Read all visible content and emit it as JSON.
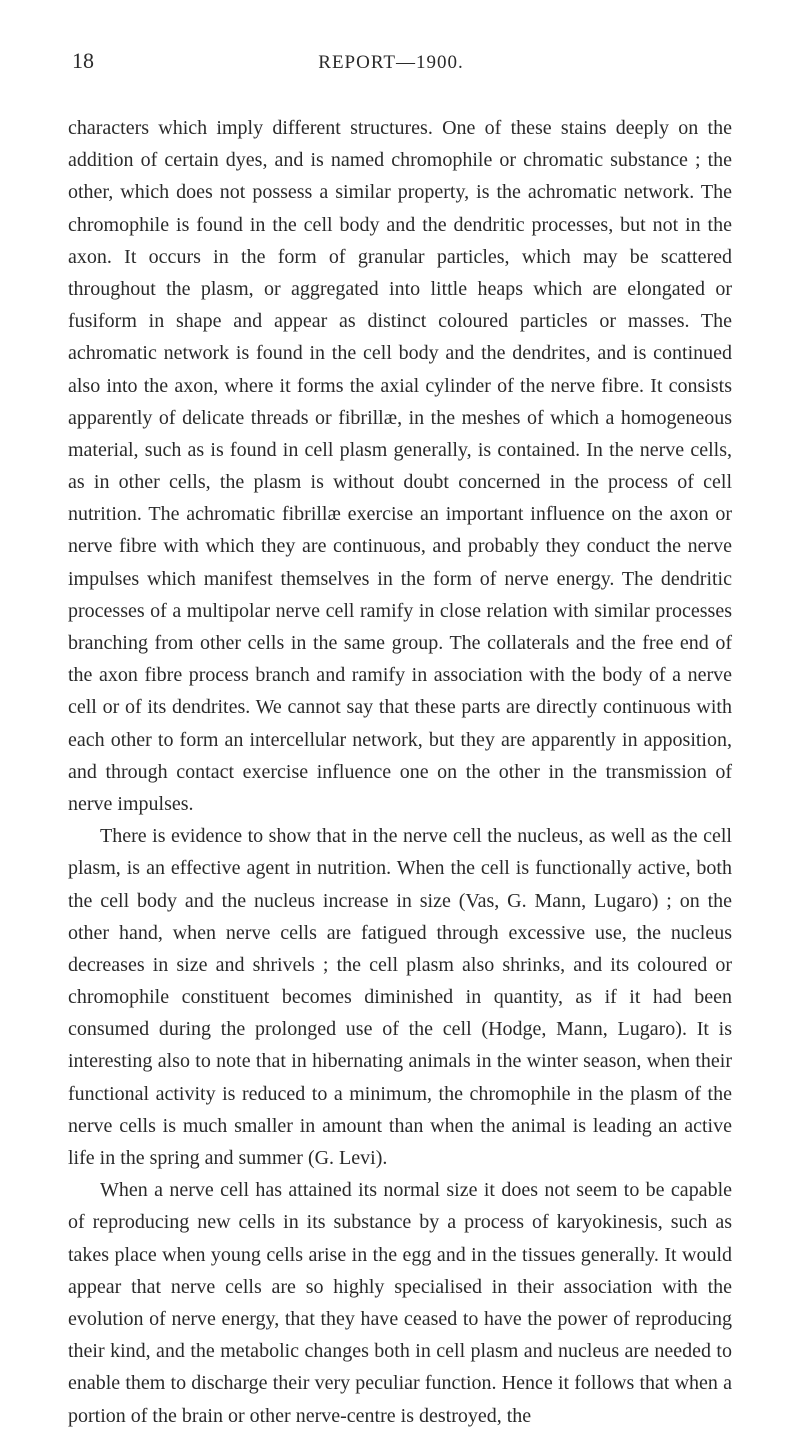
{
  "header": {
    "page_number": "18",
    "running_title": "REPORT—1900."
  },
  "paragraphs": {
    "p1": "characters which imply different structures. One of these stains deeply on the addition of certain dyes, and is named chromophile or chromatic substance ; the other, which does not possess a similar property, is the achromatic network. The chromophile is found in the cell body and the dendritic processes, but not in the axon. It occurs in the form of granular particles, which may be scattered throughout the plasm, or aggregated into little heaps which are elongated or fusiform in shape and appear as distinct coloured particles or masses. The achromatic network is found in the cell body and the dendrites, and is continued also into the axon, where it forms the axial cylinder of the nerve fibre. It consists apparently of delicate threads or fibrillæ, in the meshes of which a homogeneous material, such as is found in cell plasm generally, is contained. In the nerve cells, as in other cells, the plasm is without doubt concerned in the process of cell nutrition. The achromatic fibrillæ exercise an important influence on the axon or nerve fibre with which they are continuous, and probably they conduct the nerve impulses which manifest themselves in the form of nerve energy. The dendritic processes of a multipolar nerve cell ramify in close relation with similar processes branching from other cells in the same group. The collaterals and the free end of the axon fibre process branch and ramify in association with the body of a nerve cell or of its dendrites. We cannot say that these parts are directly continuous with each other to form an intercellular network, but they are apparently in apposition, and through contact exercise influence one on the other in the transmission of nerve impulses.",
    "p2": "There is evidence to show that in the nerve cell the nucleus, as well as the cell plasm, is an effective agent in nutrition. When the cell is functionally active, both the cell body and the nucleus increase in size (Vas, G. Mann, Lugaro) ; on the other hand, when nerve cells are fatigued through excessive use, the nucleus decreases in size and shrivels ; the cell plasm also shrinks, and its coloured or chromophile constituent becomes diminished in quantity, as if it had been consumed during the prolonged use of the cell (Hodge, Mann, Lugaro). It is interesting also to note that in hibernating animals in the winter season, when their functional activity is reduced to a minimum, the chromophile in the plasm of the nerve cells is much smaller in amount than when the animal is leading an active life in the spring and summer (G. Levi).",
    "p3": "When a nerve cell has attained its normal size it does not seem to be capable of reproducing new cells in its substance by a process of karyokinesis, such as takes place when young cells arise in the egg and in the tissues generally. It would appear that nerve cells are so highly specialised in their association with the evolution of nerve energy, that they have ceased to have the power of reproducing their kind, and the metabolic changes both in cell plasm and nucleus are needed to enable them to discharge their very peculiar function. Hence it follows that when a portion of the brain or other nerve-centre is destroyed, the"
  }
}
